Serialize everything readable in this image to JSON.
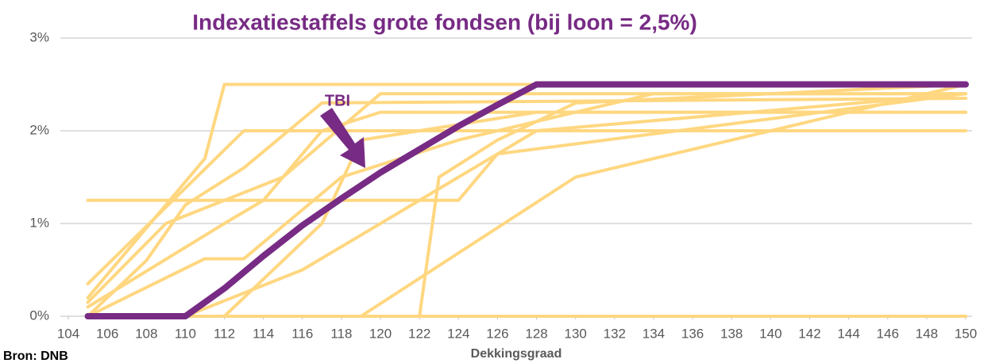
{
  "chart_data": {
    "type": "line",
    "title": "Indexatiestaffels grote fondsen (bij loon = 2,5%)",
    "x_label": "Dekkingsgraad",
    "source": "Bron: DNB",
    "xlim": [
      104,
      150
    ],
    "xticks": [
      104,
      106,
      108,
      110,
      112,
      114,
      116,
      118,
      120,
      122,
      124,
      126,
      128,
      130,
      132,
      134,
      136,
      138,
      140,
      142,
      144,
      146,
      148,
      150
    ],
    "ylim": [
      0,
      3
    ],
    "yticks": [
      {
        "value": 0,
        "label": "0%"
      },
      {
        "value": 1,
        "label": "1%"
      },
      {
        "value": 2,
        "label": "2%"
      },
      {
        "value": 3,
        "label": "3%"
      }
    ],
    "grid": true,
    "series": [
      {
        "color": "#ffd780",
        "x": [
          105,
          124,
          126,
          150
        ],
        "values": [
          1.25,
          1.25,
          1.75,
          2.4
        ]
      },
      {
        "color": "#ffd780",
        "x": [
          105,
          111,
          112,
          150
        ],
        "values": [
          0.2,
          1.7,
          2.5,
          2.5
        ]
      },
      {
        "color": "#ffd780",
        "x": [
          105,
          150
        ],
        "values": [
          0,
          0
        ]
      },
      {
        "color": "#ffd780",
        "x": [
          105,
          113,
          150
        ],
        "values": [
          0.35,
          2,
          2
        ]
      },
      {
        "color": "#ffd780",
        "x": [
          105,
          112,
          114,
          117,
          120,
          150
        ],
        "values": [
          0.1,
          1,
          1.25,
          2,
          2.2,
          2.2
        ]
      },
      {
        "color": "#ffd780",
        "x": [
          105,
          110,
          116,
          122,
          128,
          150
        ],
        "values": [
          0,
          0,
          0.5,
          1.25,
          2,
          2.4
        ]
      },
      {
        "color": "#ffd780",
        "x": [
          105,
          122,
          123,
          126,
          130,
          150
        ],
        "values": [
          0,
          0,
          1.5,
          1.9,
          2.3,
          2.5
        ]
      },
      {
        "color": "#ffd780",
        "x": [
          105,
          119,
          130,
          140,
          150
        ],
        "values": [
          0,
          0,
          1.5,
          2,
          2.5
        ]
      },
      {
        "color": "#ffd780",
        "x": [
          105,
          109,
          115,
          120,
          150
        ],
        "values": [
          0.15,
          1,
          1.5,
          2.4,
          2.4
        ]
      },
      {
        "color": "#ffd780",
        "x": [
          105,
          112,
          117,
          119,
          128,
          150
        ],
        "values": [
          0,
          0,
          1,
          1.9,
          2.2,
          2.2
        ]
      },
      {
        "color": "#ffd780",
        "x": [
          105,
          108,
          110,
          113,
          117,
          150
        ],
        "values": [
          0,
          0.6,
          1.2,
          1.6,
          2.3,
          2.35
        ]
      },
      {
        "color": "#ffd780",
        "x": [
          105,
          111,
          113,
          118,
          124,
          134,
          150
        ],
        "values": [
          0,
          0.62,
          0.62,
          1.5,
          1.9,
          2.4,
          2.4
        ]
      },
      {
        "name": "TBI",
        "color": "#772b84",
        "x": [
          105,
          110,
          112,
          114,
          116,
          118,
          120,
          122,
          124,
          126,
          128,
          150
        ],
        "values": [
          0,
          0,
          0.3,
          0.65,
          0.98,
          1.27,
          1.55,
          1.8,
          2.05,
          2.28,
          2.5,
          2.5
        ]
      }
    ]
  }
}
